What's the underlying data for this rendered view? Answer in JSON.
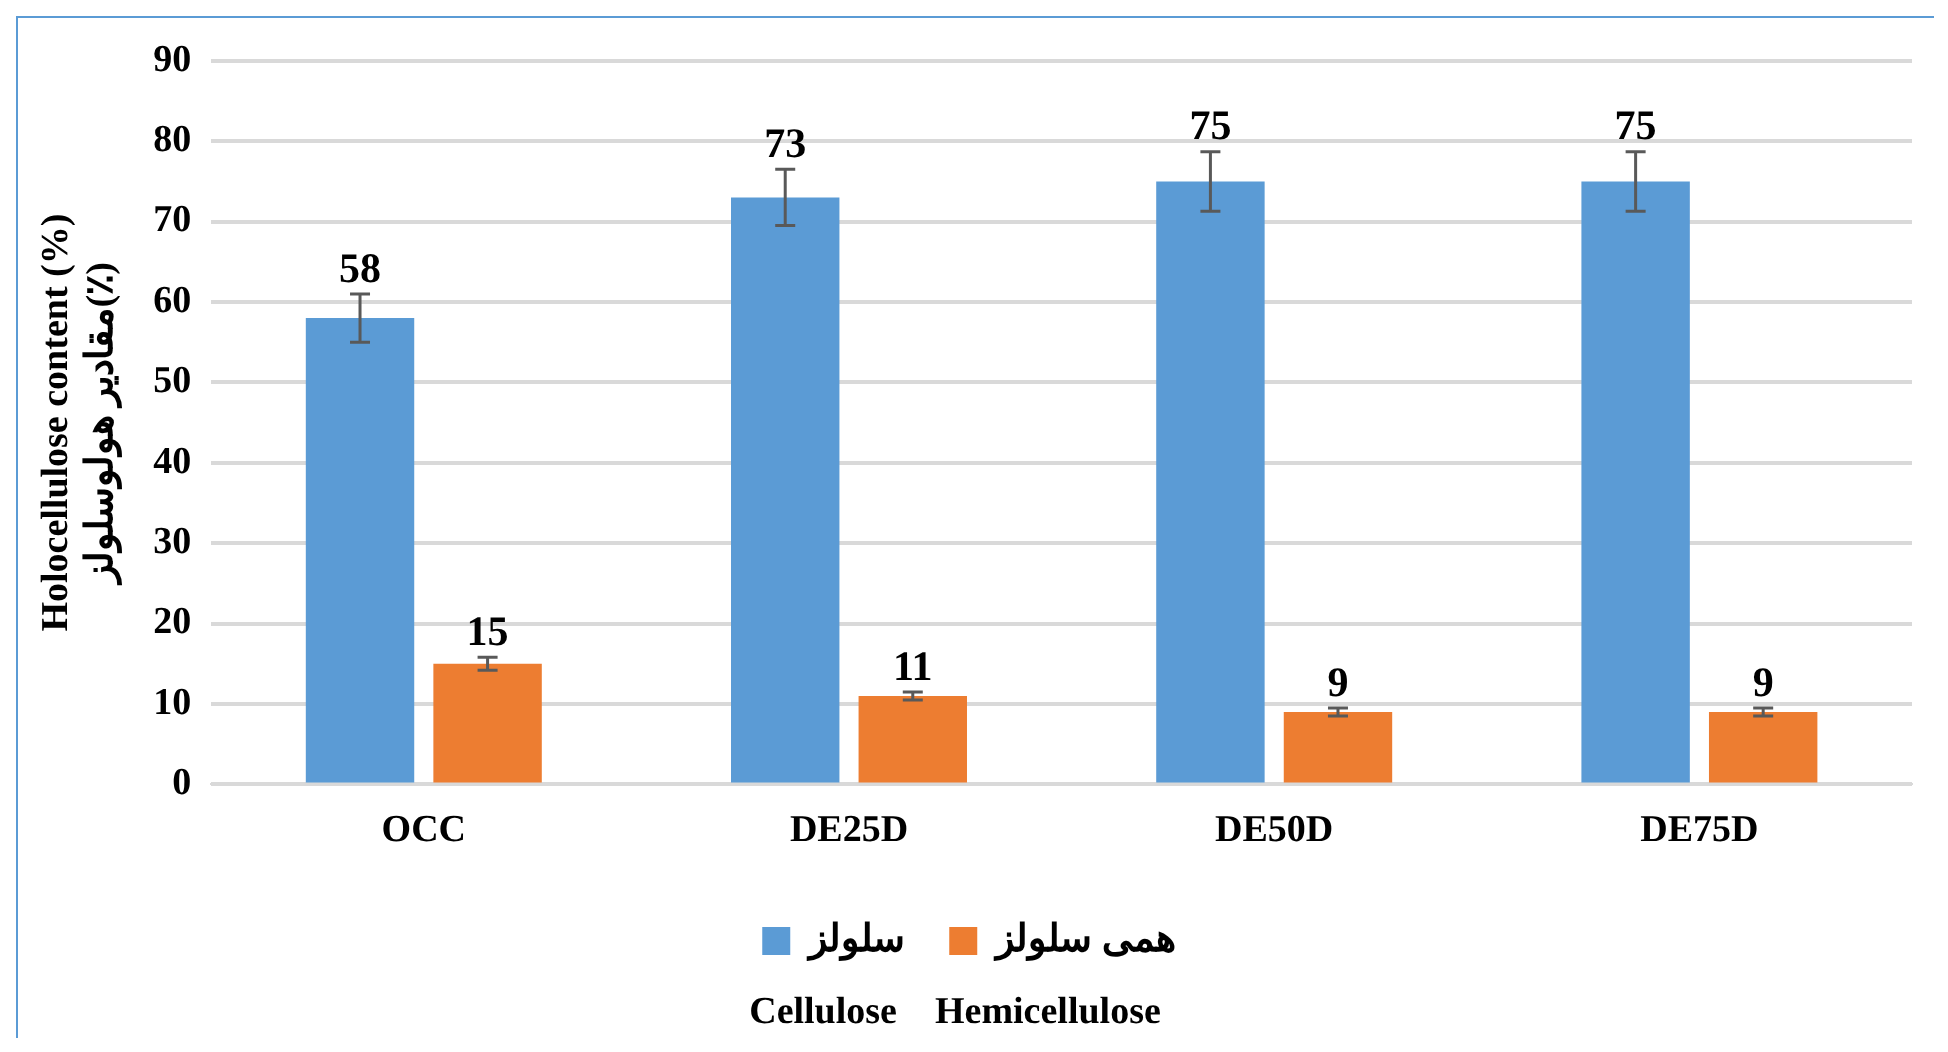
{
  "chart_data": {
    "type": "bar",
    "ylabel": "Holocellulose content (%)\nمقادیر هولوسلولز(٪)",
    "categories": [
      "OCC",
      "DE25D",
      "DE50D",
      "DE75D"
    ],
    "series": [
      {
        "name": "سلولز",
        "color": "#5b9bd5",
        "values": [
          58,
          73,
          75,
          75
        ],
        "errors": [
          3,
          3.5,
          3.7,
          3.7
        ]
      },
      {
        "name": "همی سلولز",
        "color": "#ed7d31",
        "values": [
          15,
          11,
          9,
          9
        ],
        "errors": [
          0.8,
          0.5,
          0.5,
          0.5
        ]
      }
    ],
    "ylim": [
      0,
      90
    ],
    "yticks": [
      0,
      10,
      20,
      30,
      40,
      50,
      60,
      70,
      80,
      90
    ],
    "grid": "y",
    "legend": "bottom",
    "data_labels": true,
    "annotations": [
      "Cellulose    Hemicellulose"
    ]
  }
}
